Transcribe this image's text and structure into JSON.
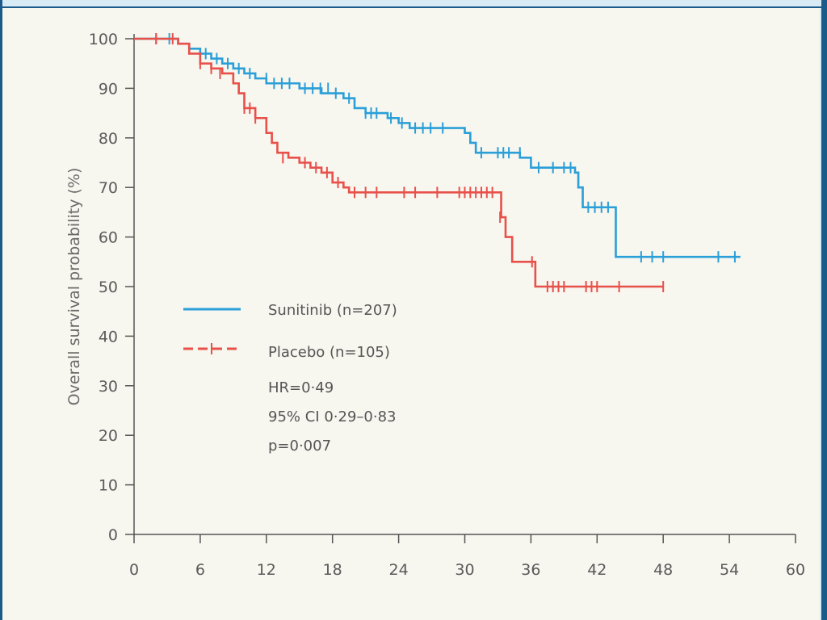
{
  "chart_data": {
    "type": "line",
    "subtype": "kaplan-meier step",
    "title": "",
    "xlabel": "",
    "ylabel": "Overall survival probability (%)",
    "xlim": [
      0,
      60
    ],
    "ylim": [
      0,
      100
    ],
    "x_ticks": [
      0,
      6,
      12,
      18,
      24,
      30,
      36,
      42,
      48,
      54,
      60
    ],
    "y_ticks": [
      0,
      10,
      20,
      30,
      40,
      50,
      60,
      70,
      80,
      90,
      100
    ],
    "grid": false,
    "legend_position": "center-left",
    "series": [
      {
        "name": "Sunitinib (n=207)",
        "color": "#2a9fd8",
        "line_style": "solid",
        "steps": [
          [
            0,
            100
          ],
          [
            3,
            100
          ],
          [
            4,
            99
          ],
          [
            5,
            98
          ],
          [
            6,
            97
          ],
          [
            7,
            96
          ],
          [
            8,
            95
          ],
          [
            9,
            94
          ],
          [
            10,
            93
          ],
          [
            11,
            92
          ],
          [
            12,
            91
          ],
          [
            14,
            91
          ],
          [
            15,
            90
          ],
          [
            17,
            89
          ],
          [
            19,
            88
          ],
          [
            20,
            86
          ],
          [
            21,
            85
          ],
          [
            23,
            84
          ],
          [
            24,
            83
          ],
          [
            25,
            82
          ],
          [
            29,
            82
          ],
          [
            30,
            81
          ],
          [
            30.5,
            79
          ],
          [
            31,
            77
          ],
          [
            33,
            77
          ],
          [
            35,
            76
          ],
          [
            36,
            74
          ],
          [
            40,
            73
          ],
          [
            40.3,
            70
          ],
          [
            40.7,
            66
          ],
          [
            43.5,
            66
          ],
          [
            43.7,
            56
          ],
          [
            55,
            56
          ]
        ],
        "censor_marks": [
          [
            2,
            100
          ],
          [
            3.2,
            100
          ],
          [
            5,
            98
          ],
          [
            6.5,
            97
          ],
          [
            7.5,
            96
          ],
          [
            8.5,
            95
          ],
          [
            9.5,
            94
          ],
          [
            10.5,
            93
          ],
          [
            12,
            92
          ],
          [
            12.7,
            91
          ],
          [
            13.4,
            91
          ],
          [
            14.1,
            91
          ],
          [
            15.5,
            90
          ],
          [
            16.2,
            90
          ],
          [
            16.9,
            90
          ],
          [
            17.6,
            90
          ],
          [
            18.3,
            89
          ],
          [
            19.5,
            88
          ],
          [
            21,
            85
          ],
          [
            21.5,
            85
          ],
          [
            22,
            85
          ],
          [
            23.3,
            84
          ],
          [
            24.3,
            83
          ],
          [
            25.5,
            82
          ],
          [
            26.2,
            82
          ],
          [
            26.9,
            82
          ],
          [
            28,
            82
          ],
          [
            31.5,
            77
          ],
          [
            33,
            77
          ],
          [
            33.5,
            77
          ],
          [
            34,
            77
          ],
          [
            35,
            77
          ],
          [
            36.7,
            74
          ],
          [
            38,
            74
          ],
          [
            39,
            74
          ],
          [
            39.6,
            74
          ],
          [
            41.2,
            66
          ],
          [
            41.8,
            66
          ],
          [
            42.4,
            66
          ],
          [
            43,
            66
          ],
          [
            46,
            56
          ],
          [
            47,
            56
          ],
          [
            48,
            56
          ],
          [
            53,
            56
          ],
          [
            54.5,
            56
          ]
        ]
      },
      {
        "name": "Placebo (n=105)",
        "color": "#e8504a",
        "line_style": "dashed",
        "steps": [
          [
            0,
            100
          ],
          [
            3,
            100
          ],
          [
            4,
            99
          ],
          [
            5,
            97
          ],
          [
            6,
            95
          ],
          [
            7,
            94
          ],
          [
            8,
            93
          ],
          [
            9,
            91
          ],
          [
            9.5,
            89
          ],
          [
            10,
            86
          ],
          [
            11,
            84
          ],
          [
            12,
            81
          ],
          [
            12.5,
            79
          ],
          [
            13,
            77
          ],
          [
            14,
            76
          ],
          [
            15,
            75
          ],
          [
            16,
            74
          ],
          [
            17,
            73
          ],
          [
            18,
            71
          ],
          [
            19,
            70
          ],
          [
            19.5,
            69
          ],
          [
            33,
            69
          ],
          [
            33.3,
            64
          ],
          [
            33.7,
            60
          ],
          [
            34.3,
            55
          ],
          [
            36,
            55
          ],
          [
            36.4,
            50
          ],
          [
            48,
            50
          ]
        ],
        "censor_marks": [
          [
            2,
            100
          ],
          [
            3.5,
            100
          ],
          [
            6,
            95
          ],
          [
            7,
            94
          ],
          [
            7.8,
            93
          ],
          [
            10,
            86
          ],
          [
            10.5,
            86
          ],
          [
            11,
            84
          ],
          [
            13.5,
            76
          ],
          [
            15.5,
            75
          ],
          [
            16.5,
            74
          ],
          [
            17.5,
            73
          ],
          [
            18.5,
            71
          ],
          [
            20,
            69
          ],
          [
            21,
            69
          ],
          [
            22,
            69
          ],
          [
            24.5,
            69
          ],
          [
            25.5,
            69
          ],
          [
            27.5,
            69
          ],
          [
            29.5,
            69
          ],
          [
            30,
            69
          ],
          [
            30.5,
            69
          ],
          [
            31,
            69
          ],
          [
            31.5,
            69
          ],
          [
            32,
            69
          ],
          [
            32.5,
            69
          ],
          [
            33.2,
            64
          ],
          [
            36.1,
            55
          ],
          [
            37.5,
            50
          ],
          [
            38,
            50
          ],
          [
            38.5,
            50
          ],
          [
            39,
            50
          ],
          [
            41,
            50
          ],
          [
            41.5,
            50
          ],
          [
            42,
            50
          ],
          [
            44,
            50
          ],
          [
            48,
            50
          ]
        ]
      }
    ],
    "annotations": [
      "HR=0·49",
      "95% CI 0·29–0·83",
      "p=0·007"
    ]
  }
}
